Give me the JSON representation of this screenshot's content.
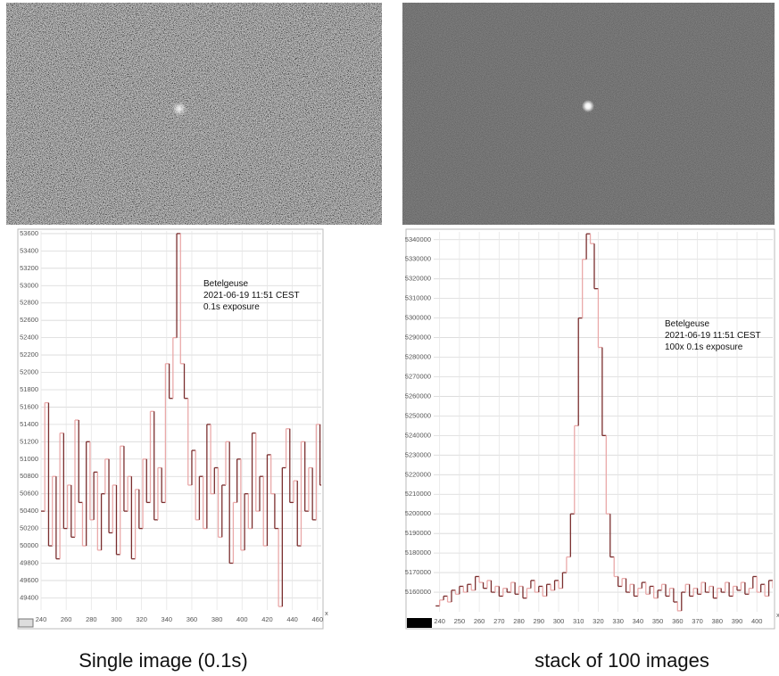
{
  "chart_data": [
    {
      "type": "step",
      "caption": "Single image (0.1s)",
      "annotation": [
        "Betelgeuse",
        "2021-06-19 11:51 CEST",
        "0.1s exposure"
      ],
      "x_label": "x",
      "x": [
        240,
        243,
        246,
        249,
        252,
        255,
        258,
        261,
        264,
        267,
        270,
        273,
        276,
        279,
        282,
        285,
        288,
        291,
        294,
        297,
        300,
        303,
        306,
        309,
        312,
        315,
        318,
        321,
        324,
        327,
        330,
        333,
        336,
        339,
        342,
        345,
        348,
        351,
        354,
        357,
        360,
        363,
        366,
        369,
        372,
        375,
        378,
        381,
        384,
        387,
        390,
        393,
        396,
        399,
        402,
        405,
        408,
        411,
        414,
        417,
        420,
        423,
        426,
        429,
        432,
        435,
        438,
        441,
        444,
        447,
        450,
        453,
        456,
        459,
        462
      ],
      "values": [
        50400,
        51650,
        50000,
        50800,
        49850,
        51300,
        50200,
        50700,
        50100,
        51450,
        50500,
        50000,
        51200,
        50300,
        50850,
        49950,
        50600,
        51000,
        50150,
        50700,
        49900,
        51150,
        50400,
        50800,
        49850,
        50650,
        50200,
        51000,
        50500,
        51550,
        50300,
        50900,
        50500,
        52100,
        51700,
        52400,
        53600,
        52100,
        51700,
        50700,
        51100,
        50300,
        50800,
        50200,
        51400,
        50600,
        50900,
        50100,
        50700,
        51200,
        49800,
        50500,
        51000,
        49950,
        50600,
        50200,
        51300,
        50400,
        50800,
        50000,
        51050,
        50600,
        50200,
        49300,
        50900,
        51350,
        50500,
        50750,
        50000,
        51200,
        50400,
        50900,
        50300,
        51400,
        50700
      ],
      "colors": [
        "#7a2e2e",
        "#eaa9a9"
      ],
      "xlim": [
        240,
        463
      ],
      "xticks": [
        240,
        260,
        280,
        300,
        320,
        340,
        360,
        380,
        400,
        420,
        440,
        460
      ],
      "ylim": [
        49260,
        53630
      ],
      "yticks": [
        49400,
        49600,
        49800,
        50000,
        50200,
        50400,
        50600,
        50800,
        51000,
        51200,
        51400,
        51600,
        51800,
        52000,
        52200,
        52400,
        52600,
        52800,
        53000,
        53200,
        53400,
        53600
      ],
      "grid": true
    },
    {
      "type": "step",
      "caption": "stack of 100 images",
      "annotation": [
        "Betelgeuse",
        "2021-06-19 11:51 CEST",
        "100x 0.1s exposure"
      ],
      "x_label": "x",
      "x": [
        238,
        240,
        242,
        244,
        246,
        248,
        250,
        252,
        254,
        256,
        258,
        260,
        262,
        264,
        266,
        268,
        270,
        272,
        274,
        276,
        278,
        280,
        282,
        284,
        286,
        288,
        290,
        292,
        294,
        296,
        298,
        300,
        302,
        304,
        306,
        308,
        310,
        312,
        314,
        316,
        318,
        320,
        322,
        324,
        326,
        328,
        330,
        332,
        334,
        336,
        338,
        340,
        342,
        344,
        346,
        348,
        350,
        352,
        354,
        356,
        358,
        360,
        362,
        364,
        366,
        368,
        370,
        372,
        374,
        376,
        378,
        380,
        382,
        384,
        386,
        388,
        390,
        392,
        394,
        396,
        398,
        400,
        402,
        404,
        406,
        408
      ],
      "values": [
        5153000,
        5156000,
        5158000,
        5155000,
        5161000,
        5159000,
        5163000,
        5160000,
        5164000,
        5161000,
        5168000,
        5165000,
        5162000,
        5166000,
        5160000,
        5163000,
        5158000,
        5162000,
        5160000,
        5165000,
        5159000,
        5163000,
        5157000,
        5162000,
        5166000,
        5160000,
        5163000,
        5158000,
        5164000,
        5161000,
        5166000,
        5162000,
        5170000,
        5178000,
        5200000,
        5245000,
        5300000,
        5330000,
        5343000,
        5338000,
        5315000,
        5285000,
        5240000,
        5200000,
        5178000,
        5168000,
        5163000,
        5167000,
        5160000,
        5164000,
        5158000,
        5162000,
        5165000,
        5159000,
        5163000,
        5157000,
        5161000,
        5164000,
        5158000,
        5162000,
        5155000,
        5150500,
        5160000,
        5164000,
        5158000,
        5162000,
        5159000,
        5165000,
        5160000,
        5163000,
        5157000,
        5162000,
        5160000,
        5165000,
        5158000,
        5163000,
        5161000,
        5165000,
        5159000,
        5162000,
        5168000,
        5160000,
        5164000,
        5158000,
        5166000,
        5162000
      ],
      "colors": [
        "#7a2e2e",
        "#eaa9a9"
      ],
      "xlim": [
        237,
        408
      ],
      "xticks": [
        240,
        250,
        260,
        270,
        280,
        290,
        300,
        310,
        320,
        330,
        340,
        350,
        360,
        370,
        380,
        390,
        400
      ],
      "ylim": [
        5150000,
        5344000
      ],
      "yticks": [
        5160000,
        5170000,
        5180000,
        5190000,
        5200000,
        5210000,
        5220000,
        5230000,
        5240000,
        5250000,
        5260000,
        5270000,
        5280000,
        5290000,
        5300000,
        5310000,
        5320000,
        5330000,
        5340000
      ],
      "grid": true
    }
  ]
}
